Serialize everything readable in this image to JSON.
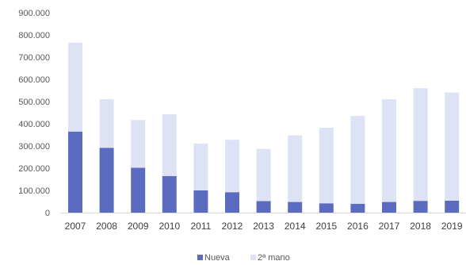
{
  "chart_data": {
    "type": "bar",
    "stacked": true,
    "categories": [
      "2007",
      "2008",
      "2009",
      "2010",
      "2011",
      "2012",
      "2013",
      "2014",
      "2015",
      "2016",
      "2017",
      "2018",
      "2019"
    ],
    "series": [
      {
        "name": "Nueva",
        "color": "#5b6bbf",
        "values": [
          365000,
          292000,
          202000,
          165000,
          100000,
          92000,
          52000,
          48000,
          42000,
          40000,
          48000,
          53000,
          54000
        ]
      },
      {
        "name": "2ª mano",
        "color": "#dde3f4",
        "values": [
          400000,
          218000,
          215000,
          278000,
          211000,
          236000,
          235000,
          300000,
          340000,
          395000,
          462000,
          507000,
          487000
        ]
      }
    ],
    "y_ticks": [
      "0",
      "100.000",
      "200.000",
      "300.000",
      "400.000",
      "500.000",
      "600.000",
      "700.000",
      "800.000",
      "900.000"
    ],
    "ylim": [
      0,
      900000
    ],
    "grid": false,
    "legend_position": "bottom"
  }
}
